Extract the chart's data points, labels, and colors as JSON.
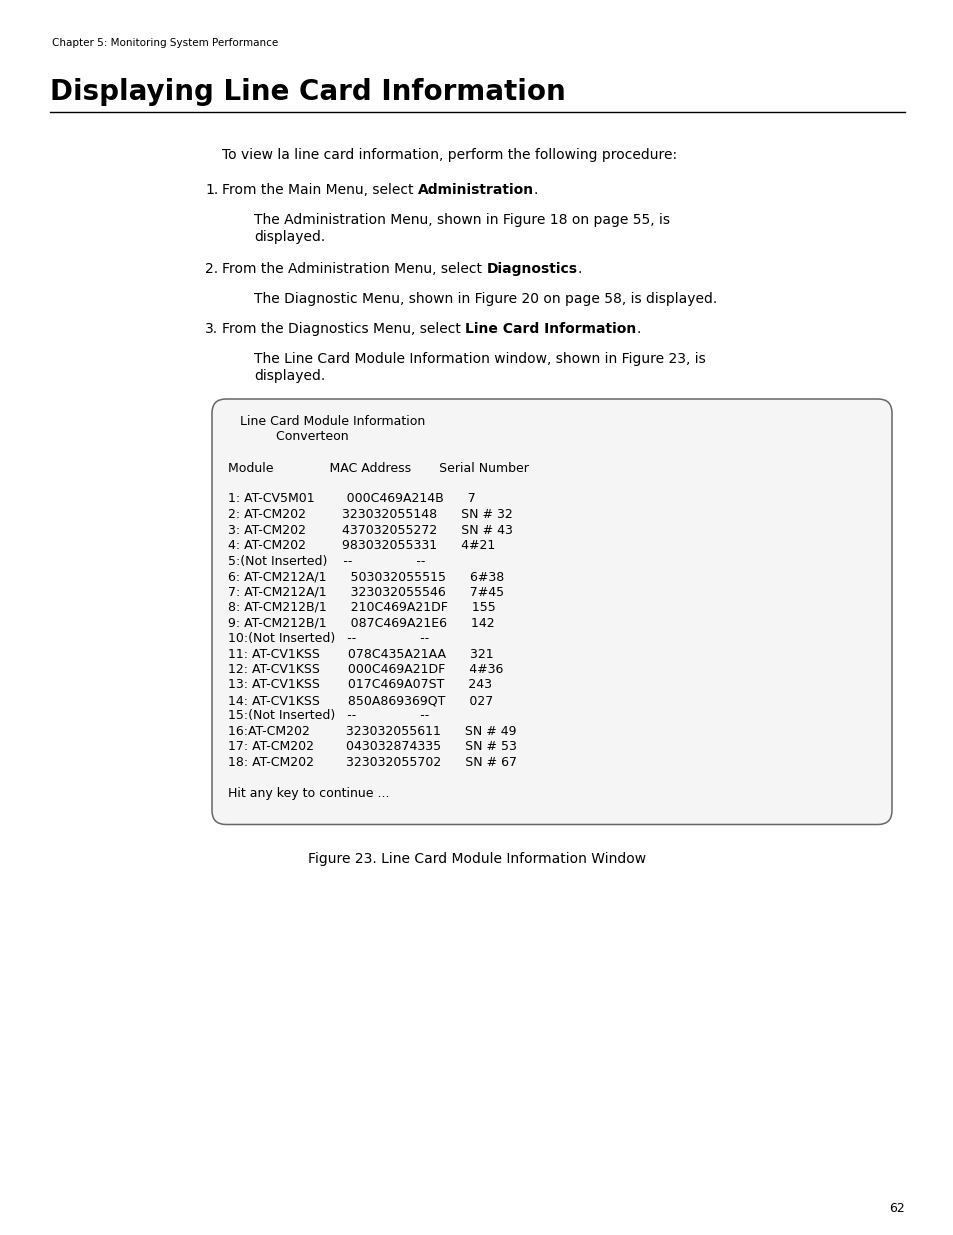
{
  "bg_color": "#ffffff",
  "chapter_text": "Chapter 5: Monitoring System Performance",
  "title": "Displaying Line Card Information",
  "page_number": "62",
  "intro_text": "To view la line card information, perform the following procedure:",
  "step1_pre": "From the Main Menu, select ",
  "step1_bold": "Administration",
  "step1_post": ".",
  "step1_sub1": "The Administration Menu, shown in Figure 18 on page 55, is",
  "step1_sub2": "displayed.",
  "step2_pre": "From the Administration Menu, select ",
  "step2_bold": "Diagnostics",
  "step2_post": ".",
  "step2_sub1": "The Diagnostic Menu, shown in Figure 20 on page 58, is displayed.",
  "step3_pre": "From the Diagnostics Menu, select ",
  "step3_bold": "Line Card Information",
  "step3_post": ".",
  "step3_sub1": "The Line Card Module Information window, shown in Figure 23, is",
  "step3_sub2": "displayed.",
  "terminal_lines": [
    "     Line Card Module Information",
    "              Converteon",
    "",
    "  Module              MAC Address       Serial Number",
    "",
    "  1: AT-CV5M01        000C469A214B      7",
    "  2: AT-CM202         323032055148      SN # 32",
    "  3: AT-CM202         437032055272      SN # 43",
    "  4: AT-CM202         983032055331      4#21",
    "  5:(Not Inserted)    --                --",
    "  6: AT-CM212A/1      503032055515      6#38",
    "  7: AT-CM212A/1      323032055546      7#45",
    "  8: AT-CM212B/1      210C469A21DF      155",
    "  9: AT-CM212B/1      087C469A21E6      142",
    "  10:(Not Inserted)   --                --",
    "  11: AT-CV1KSS       078C435A21AA      321",
    "  12: AT-CV1KSS       000C469A21DF      4#36",
    "  13: AT-CV1KSS       017C469A07ST      243",
    "  14: AT-CV1KSS       850A869369QT      027",
    "  15:(Not Inserted)   --                --",
    "  16:AT-CM202         323032055611      SN # 49",
    "  17: AT-CM202        043032874335      SN # 53",
    "  18: AT-CM202        323032055702      SN # 67",
    "",
    "  Hit any key to continue ..."
  ],
  "figure_caption": "Figure 23. Line Card Module Information Window",
  "body_fontsize": 10,
  "mono_fontsize": 9,
  "title_fontsize": 20,
  "chapter_fontsize": 7.5,
  "page_fontsize": 9
}
